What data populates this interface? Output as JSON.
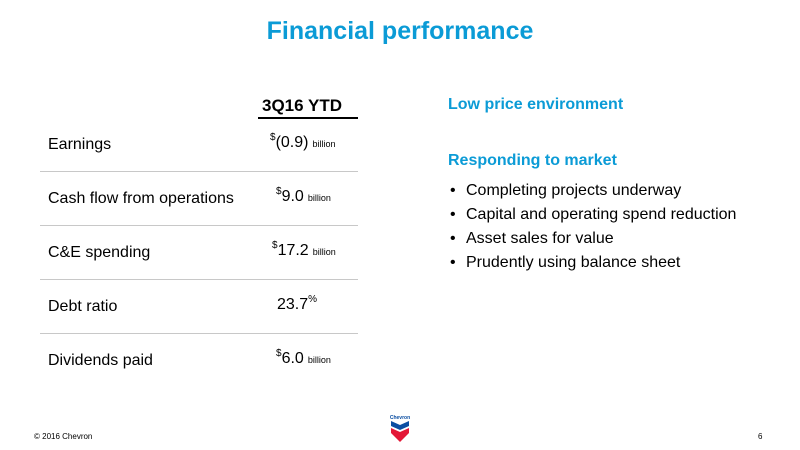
{
  "slide": {
    "title": "Financial performance",
    "column_header": "3Q16 YTD",
    "metrics": [
      {
        "label": "Earnings",
        "prefix": "$",
        "value": "(0.9)",
        "unit": "billion"
      },
      {
        "label": "Cash flow from operations",
        "prefix": "$",
        "value": "9.0",
        "unit": "billion"
      },
      {
        "label": "C&E spending",
        "prefix": "$",
        "value": "17.2",
        "unit": "billion"
      },
      {
        "label": "Debt ratio",
        "prefix": "",
        "value": "23.7",
        "suffix": "%"
      },
      {
        "label": "Dividends paid",
        "prefix": "$",
        "value": "6.0",
        "unit": "billion"
      }
    ],
    "right_heading_1": "Low price environment",
    "right_heading_2": "Responding to market",
    "bullets": [
      "Completing projects underway",
      "Capital and operating spend reduction",
      "Asset sales for value",
      "Prudently using balance sheet"
    ],
    "footer_copyright": "© 2016 Chevron",
    "page_number": "6",
    "logo_text": "Chevron",
    "brand_colors": {
      "accent": "#0b9bd6",
      "logo_blue": "#0b4ea2",
      "logo_red": "#e31837"
    }
  }
}
